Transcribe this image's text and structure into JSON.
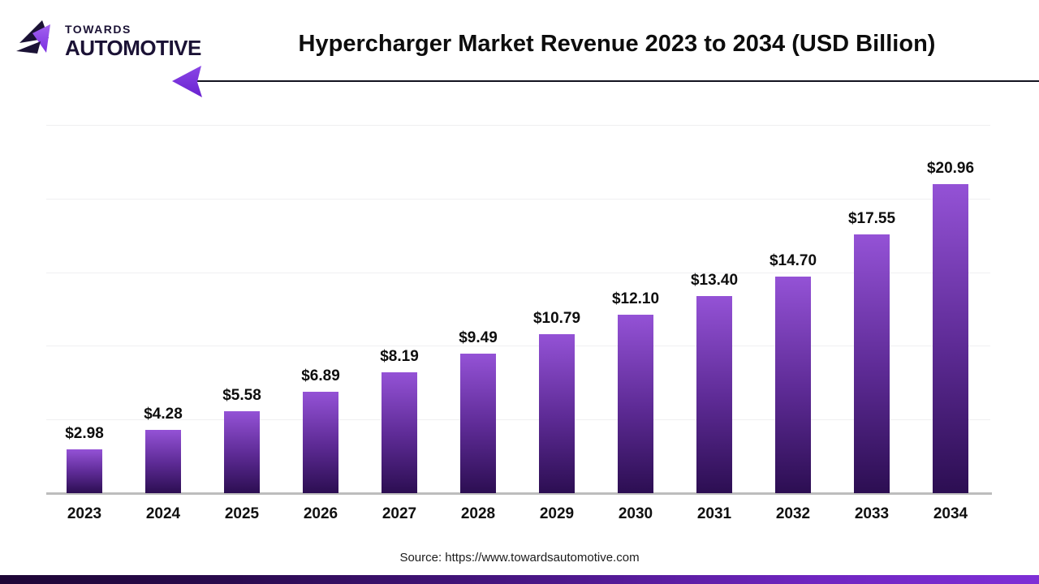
{
  "brand": {
    "line1": "TOWARDS",
    "line2": "AUTOMOTIVE",
    "dark_color": "#1b1235",
    "accent_color": "#9b59f5"
  },
  "header": {
    "title": "Hypercharger Market Revenue 2023 to 2034 (USD Billion)"
  },
  "chart_data": {
    "type": "bar",
    "title": "Hypercharger Market Revenue 2023 to 2034 (USD Billion)",
    "categories": [
      "2023",
      "2024",
      "2025",
      "2026",
      "2027",
      "2028",
      "2029",
      "2030",
      "2031",
      "2032",
      "2033",
      "2034"
    ],
    "values": [
      2.98,
      4.28,
      5.58,
      6.89,
      8.19,
      9.49,
      10.79,
      12.1,
      13.4,
      14.7,
      17.55,
      20.96
    ],
    "value_labels": [
      "$2.98",
      "$4.28",
      "$5.58",
      "$6.89",
      "$8.19",
      "$9.49",
      "$10.79",
      "$12.10",
      "$13.40",
      "$14.70",
      "$17.55",
      "$20.96"
    ],
    "xlabel": "",
    "ylabel": "",
    "ylim": [
      0,
      25
    ],
    "gridline_values": [
      5,
      10,
      15,
      20,
      25
    ],
    "grid": true,
    "legend": false,
    "bar_color_top": "#9452d6",
    "bar_color_bottom": "#2c0e52"
  },
  "footer": {
    "source": "Source: https://www.towardsautomotive.com"
  },
  "decor": {
    "arrow_color_top": "#8a46e6",
    "arrow_color_bottom": "#6a22d0",
    "line_color": "#12121f"
  }
}
